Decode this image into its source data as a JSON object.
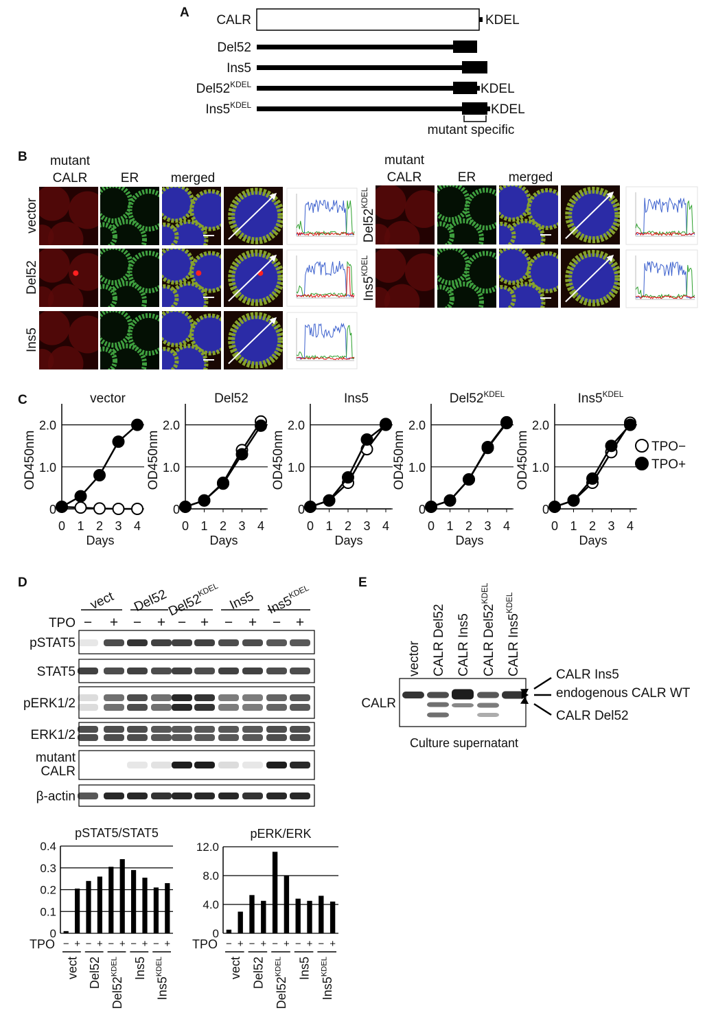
{
  "panel_a": {
    "label": "A",
    "constructs": [
      {
        "name": "CALR",
        "tail": "KDEL"
      },
      {
        "name": "Del52"
      },
      {
        "name": "Ins5"
      },
      {
        "name": "Del52",
        "sup": "KDEL",
        "tail": "KDEL"
      },
      {
        "name": "Ins5",
        "sup": "KDEL",
        "tail": "KDEL"
      }
    ],
    "bracket_label": "mutant specific"
  },
  "panel_b": {
    "label": "B",
    "left_headers": [
      [
        "mutant",
        "CALR"
      ],
      [
        "ER"
      ],
      [
        "merged"
      ]
    ],
    "right_headers": [
      [
        "mutant",
        "CALR"
      ],
      [
        "ER"
      ],
      [
        "merged"
      ]
    ],
    "rows_left": [
      {
        "name": "vector"
      },
      {
        "name": "Del52"
      },
      {
        "name": "Ins5"
      }
    ],
    "rows_right": [
      {
        "name": "Del52",
        "sup": "KDEL"
      },
      {
        "name": "Ins5",
        "sup": "KDEL"
      }
    ]
  },
  "panel_c": {
    "label": "C",
    "chart_data": [
      {
        "type": "line",
        "title": "vector",
        "x": [
          0,
          1,
          2,
          3,
          4
        ],
        "xlim": [
          0,
          4
        ],
        "xticks": [
          0,
          1,
          2,
          3,
          4
        ],
        "xlabel": "Days",
        "ylabel": "OD450nm",
        "ylim": [
          0,
          2.5
        ],
        "yticks": [
          0,
          {
            "value": 1,
            "label": "1.0"
          },
          {
            "value": 2,
            "label": "2.0"
          }
        ],
        "grid": true,
        "series": [
          {
            "color": "#ffffff",
            "values": [
              0.05,
              0.03,
              0.01,
              0,
              0
            ]
          },
          {
            "color": "#000000",
            "values": [
              0.05,
              0.3,
              0.8,
              1.6,
              2.0
            ]
          }
        ]
      },
      {
        "type": "line",
        "title": "Del52",
        "x": [
          0,
          1,
          2,
          3,
          4
        ],
        "xlim": [
          0,
          4
        ],
        "xticks": [
          0,
          1,
          2,
          3,
          4
        ],
        "xlabel": "Days",
        "ylabel": "OD450nm",
        "ylim": [
          0,
          2.5
        ],
        "yticks": [
          0,
          {
            "value": 1,
            "label": "1.0"
          },
          {
            "value": 2,
            "label": "2.0"
          }
        ],
        "grid": true,
        "series": [
          {
            "color": "#ffffff",
            "values": [
              0.05,
              0.2,
              0.62,
              1.4,
              2.08
            ]
          },
          {
            "color": "#000000",
            "values": [
              0.05,
              0.2,
              0.6,
              1.3,
              1.98
            ]
          }
        ]
      },
      {
        "type": "line",
        "title": "Ins5",
        "x": [
          0,
          1,
          2,
          3,
          4
        ],
        "xlim": [
          0,
          4
        ],
        "xticks": [
          0,
          1,
          2,
          3,
          4
        ],
        "xlabel": "Days",
        "ylabel": "OD450nm",
        "ylim": [
          0,
          2.5
        ],
        "yticks": [
          0,
          {
            "value": 1,
            "label": "1.0"
          },
          {
            "value": 2,
            "label": "2.0"
          }
        ],
        "grid": true,
        "series": [
          {
            "color": "#ffffff",
            "values": [
              0.05,
              0.2,
              0.62,
              1.42,
              2.02
            ]
          },
          {
            "color": "#000000",
            "values": [
              0.05,
              0.2,
              0.75,
              1.65,
              2.0
            ]
          }
        ]
      },
      {
        "type": "line",
        "title": "Del52",
        "title_sup": "KDEL",
        "x": [
          0,
          1,
          2,
          3,
          4
        ],
        "xlim": [
          0,
          4
        ],
        "xticks": [
          0,
          1,
          2,
          3,
          4
        ],
        "xlabel": "Days",
        "ylabel": "OD450nm",
        "ylim": [
          0,
          2.5
        ],
        "yticks": [
          0,
          {
            "value": 1,
            "label": "1.0"
          },
          {
            "value": 2,
            "label": "2.0"
          }
        ],
        "grid": true,
        "series": [
          {
            "color": "#ffffff",
            "values": [
              0.05,
              0.2,
              0.7,
              1.47,
              2.06
            ]
          },
          {
            "color": "#000000",
            "values": [
              0.05,
              0.2,
              0.7,
              1.45,
              2.04
            ]
          }
        ]
      },
      {
        "type": "line",
        "title": "Ins5",
        "title_sup": "KDEL",
        "x": [
          0,
          1,
          2,
          3,
          4
        ],
        "xlim": [
          0,
          4
        ],
        "xticks": [
          0,
          1,
          2,
          3,
          4
        ],
        "xlabel": "Days",
        "ylabel": "OD450nm",
        "ylim": [
          0,
          2.5
        ],
        "yticks": [
          0,
          {
            "value": 1,
            "label": "1.0"
          },
          {
            "value": 2,
            "label": "2.0"
          }
        ],
        "grid": true,
        "series": [
          {
            "name": "TPO−",
            "color": "#ffffff",
            "values": [
              0.05,
              0.2,
              0.62,
              1.35,
              2.05
            ]
          },
          {
            "name": "TPO+",
            "color": "#000000",
            "values": [
              0.05,
              0.2,
              0.72,
              1.5,
              2.0
            ]
          }
        ]
      }
    ]
  },
  "panel_d": {
    "label": "D",
    "groups": [
      {
        "name": "vect"
      },
      {
        "name": "Del52"
      },
      {
        "name": "Del52",
        "sup": "KDEL"
      },
      {
        "name": "Ins5"
      },
      {
        "name": "Ins5",
        "sup": "KDEL"
      }
    ],
    "tpo_label": "TPO",
    "tpo_signs": [
      "−",
      "+",
      "−",
      "+",
      "−",
      "+",
      "−",
      "+",
      "−",
      "+"
    ],
    "rows": [
      {
        "lines": [
          "pSTAT5"
        ]
      },
      {
        "lines": [
          "STAT5"
        ]
      },
      {
        "lines": [
          "pERK1/2"
        ]
      },
      {
        "lines": [
          "ERK1/2"
        ]
      },
      {
        "lines": [
          "mutant",
          "CALR"
        ]
      },
      {
        "lines": [
          "β-actin"
        ]
      }
    ],
    "chart_data": [
      {
        "type": "bar",
        "title": "pSTAT5/STAT5",
        "xlabel": "TPO",
        "categories": [
          "−",
          "+",
          "−",
          "+",
          "−",
          "+",
          "−",
          "+",
          "−",
          "+"
        ],
        "groups": [
          {
            "name": "vect"
          },
          {
            "name": "Del52"
          },
          {
            "name": "Del52",
            "sup": "KDEL"
          },
          {
            "name": "Ins5"
          },
          {
            "name": "Ins5",
            "sup": "KDEL"
          }
        ],
        "values": [
          0.01,
          0.205,
          0.24,
          0.26,
          0.305,
          0.34,
          0.29,
          0.255,
          0.21,
          0.23
        ],
        "color": "#000000",
        "ylim": [
          0,
          0.4
        ],
        "yticks": [
          0,
          0.1,
          0.2,
          0.3,
          0.4
        ],
        "grid": true
      },
      {
        "type": "bar",
        "title": "pERK/ERK",
        "xlabel": "TPO",
        "categories": [
          "−",
          "+",
          "−",
          "+",
          "−",
          "+",
          "−",
          "+",
          "−",
          "+"
        ],
        "groups": [
          {
            "name": "vect"
          },
          {
            "name": "Del52"
          },
          {
            "name": "Del52",
            "sup": "KDEL"
          },
          {
            "name": "Ins5"
          },
          {
            "name": "Ins5",
            "sup": "KDEL"
          }
        ],
        "values": [
          0.5,
          3.0,
          5.3,
          4.5,
          11.3,
          8.0,
          4.8,
          4.5,
          5.2,
          4.4
        ],
        "color": "#000000",
        "ylim": [
          0,
          12
        ],
        "yticks": [
          0,
          {
            "value": 4,
            "label": "4.0"
          },
          {
            "value": 8,
            "label": "8.0"
          },
          {
            "value": 12,
            "label": "12.0"
          }
        ],
        "grid": true
      }
    ]
  },
  "panel_e": {
    "label": "E",
    "lanes": [
      {
        "name": "vector"
      },
      {
        "name": "CALR Del52"
      },
      {
        "name": "CALR Ins5"
      },
      {
        "name": "CALR Del52",
        "sup": "KDEL"
      },
      {
        "name": "CALR Ins5",
        "sup": "KDEL"
      }
    ],
    "row_label": "CALR",
    "annotations": [
      "CALR Ins5",
      "endogenous CALR WT",
      "CALR Del52"
    ],
    "caption": "Culture supernatant"
  }
}
